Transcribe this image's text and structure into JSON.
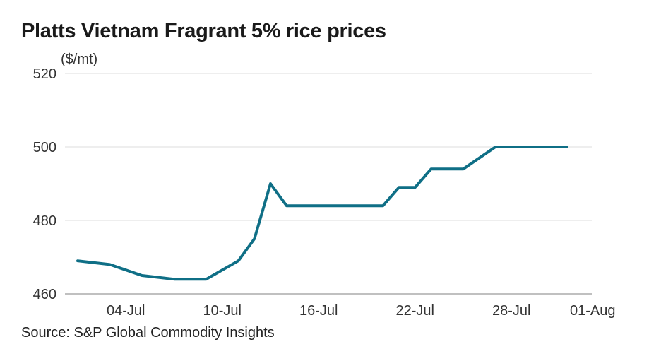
{
  "chart_data": {
    "type": "line",
    "title": "Platts Vietnam Fragrant 5% rice prices",
    "unit": "($/mt)",
    "source": "Source: S&P Global Commodity Insights",
    "ylim": [
      460,
      520
    ],
    "yticks": [
      460,
      480,
      500,
      520
    ],
    "grid": true,
    "line_color": "#0f6f86",
    "x": [
      "2024-07-01",
      "2024-07-02",
      "2024-07-03",
      "2024-07-04",
      "2024-07-05",
      "2024-07-06",
      "2024-07-07",
      "2024-07-08",
      "2024-07-09",
      "2024-07-10",
      "2024-07-11",
      "2024-07-12",
      "2024-07-13",
      "2024-07-14",
      "2024-07-15",
      "2024-07-16",
      "2024-07-17",
      "2024-07-18",
      "2024-07-19",
      "2024-07-20",
      "2024-07-21",
      "2024-07-22",
      "2024-07-23",
      "2024-07-24",
      "2024-07-25",
      "2024-07-26",
      "2024-07-27",
      "2024-07-28",
      "2024-07-29",
      "2024-07-30",
      "2024-07-31",
      "2024-08-01"
    ],
    "series": [
      {
        "values": [
          469,
          null,
          468,
          null,
          465,
          null,
          464,
          null,
          464,
          null,
          469,
          475,
          490,
          484,
          null,
          484,
          null,
          484,
          null,
          484,
          489,
          489,
          494,
          null,
          494,
          null,
          500,
          null,
          500,
          null,
          null,
          null
        ]
      }
    ],
    "xtick_labels": [
      "04-Jul",
      "10-Jul",
      "16-Jul",
      "22-Jul",
      "28-Jul",
      "01-Aug"
    ],
    "xtick_dates": [
      "2024-07-04",
      "2024-07-10",
      "2024-07-16",
      "2024-07-22",
      "2024-07-28",
      "2024-08-01"
    ]
  }
}
